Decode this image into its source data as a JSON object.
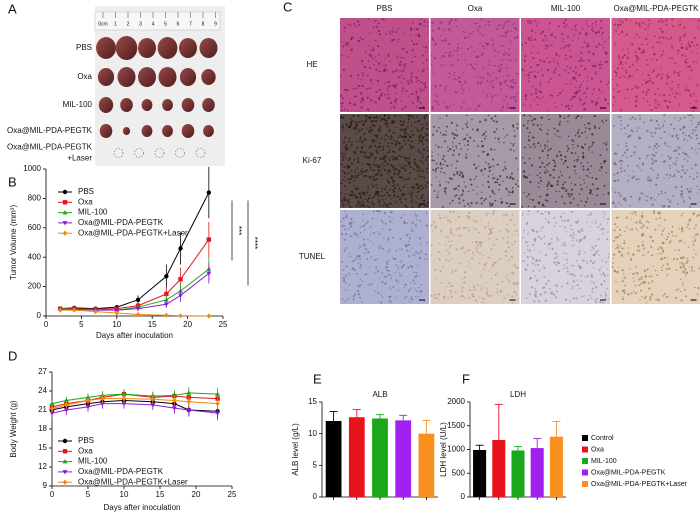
{
  "figure": {
    "panel_labels": [
      "A",
      "B",
      "C",
      "D",
      "E",
      "F"
    ],
    "photo": {
      "ruler": [
        "0cm",
        "1",
        "2",
        "3",
        "4",
        "5",
        "6",
        "7",
        "8",
        "9"
      ],
      "rows": [
        [
          "PBS"
        ],
        [
          "Oxa"
        ],
        [
          "MIL-100"
        ],
        [
          "Oxa@MIL-PDA-PEGTK"
        ],
        [
          "Oxa@MIL-PDA-PEGTK",
          "+Laser"
        ]
      ]
    },
    "histology": {
      "columns": [
        "PBS",
        "Oxa",
        "MIL-100",
        "Oxa@MIL-PDA-PEGTK"
      ],
      "rows": [
        "HE",
        "Ki-67",
        "TUNEL"
      ]
    }
  },
  "chart_data": [
    {
      "type": "line",
      "ylabel": "Tumor Volume (mm³)",
      "xlabel": "Days after inoculation",
      "x": [
        2,
        4,
        7,
        10,
        13,
        17,
        19,
        23
      ],
      "xlim": [
        0,
        25
      ],
      "xticks": [
        0,
        5,
        10,
        15,
        20,
        25
      ],
      "ylim": [
        0,
        1000
      ],
      "yticks": [
        0,
        200,
        400,
        600,
        800,
        1000
      ],
      "legend": "upper left",
      "annotations": [
        "***",
        "****"
      ],
      "series": [
        {
          "name": "PBS",
          "color": "#000000",
          "marker": "circle",
          "values": [
            50,
            55,
            50,
            60,
            110,
            270,
            460,
            840
          ],
          "errors": [
            10,
            10,
            10,
            15,
            30,
            80,
            110,
            175
          ]
        },
        {
          "name": "Oxa",
          "color": "#e8141c",
          "marker": "square",
          "values": [
            50,
            50,
            45,
            50,
            70,
            150,
            250,
            520
          ],
          "errors": [
            10,
            10,
            10,
            10,
            20,
            50,
            80,
            120
          ]
        },
        {
          "name": "MIL-100",
          "color": "#1aa81a",
          "marker": "triangle",
          "values": [
            50,
            45,
            45,
            40,
            60,
            110,
            170,
            320
          ],
          "errors": [
            10,
            10,
            10,
            10,
            15,
            30,
            50,
            80
          ]
        },
        {
          "name": "Oxa@MIL-PDA-PEGTK",
          "color": "#8b1ad6",
          "marker": "triangle-down",
          "values": [
            45,
            45,
            40,
            40,
            50,
            80,
            140,
            290
          ],
          "errors": [
            10,
            10,
            10,
            10,
            15,
            25,
            45,
            70
          ]
        },
        {
          "name": "Oxa@MIL-PDA-PEGTK+Laser",
          "color": "#f08a0a",
          "marker": "diamond",
          "values": [
            40,
            40,
            30,
            20,
            10,
            5,
            2,
            0
          ],
          "errors": [
            8,
            8,
            6,
            5,
            4,
            3,
            2,
            1
          ]
        }
      ]
    },
    {
      "type": "line",
      "ylabel": "Body Weight (g)",
      "xlabel": "Days after inoculation",
      "x": [
        0,
        2,
        5,
        7,
        10,
        14,
        17,
        19,
        23
      ],
      "xlim": [
        0,
        25
      ],
      "xticks": [
        0,
        5,
        10,
        15,
        20,
        25
      ],
      "ylim": [
        9,
        27
      ],
      "yticks": [
        9,
        12,
        15,
        18,
        21,
        24,
        27
      ],
      "legend": "lower left",
      "series": [
        {
          "name": "PBS",
          "color": "#000000",
          "marker": "circle",
          "values": [
            21,
            21.5,
            22,
            22.3,
            22.5,
            22.3,
            22,
            21,
            20.8
          ],
          "errors": [
            0.6,
            0.6,
            0.7,
            0.7,
            0.8,
            0.8,
            0.9,
            1,
            1.2
          ]
        },
        {
          "name": "Oxa",
          "color": "#e8141c",
          "marker": "square",
          "values": [
            21.5,
            22,
            22.5,
            23,
            23.5,
            23,
            23.2,
            23,
            22.8
          ],
          "errors": [
            0.6,
            0.6,
            0.7,
            0.7,
            0.8,
            0.8,
            0.8,
            0.8,
            0.9
          ]
        },
        {
          "name": "MIL-100",
          "color": "#1aa81a",
          "marker": "triangle",
          "values": [
            22,
            22.5,
            23,
            23.3,
            23.5,
            23.2,
            23.3,
            23.7,
            23.5
          ],
          "errors": [
            0.6,
            0.6,
            0.6,
            0.7,
            0.7,
            0.7,
            0.8,
            0.9,
            1
          ]
        },
        {
          "name": "Oxa@MIL-PDA-PEGTK",
          "color": "#8b1ad6",
          "marker": "triangle-down",
          "values": [
            20.5,
            21,
            21.5,
            22,
            22,
            21.8,
            21.3,
            21,
            20.5
          ],
          "errors": [
            0.8,
            0.8,
            0.8,
            0.8,
            0.8,
            0.8,
            0.9,
            1,
            1.1
          ]
        },
        {
          "name": "Oxa@MIL-PDA-PEGTK+Laser",
          "color": "#f08a0a",
          "marker": "diamond",
          "values": [
            21.2,
            21.8,
            22.5,
            22.8,
            22.8,
            22.7,
            22.5,
            22.3,
            22
          ],
          "errors": [
            0.6,
            0.6,
            0.6,
            0.7,
            0.7,
            0.7,
            0.7,
            0.8,
            0.8
          ]
        }
      ]
    },
    {
      "type": "bar",
      "title": "ALB",
      "ylabel": "ALB level (g/L)",
      "categories": [
        null,
        null,
        null,
        null,
        null
      ],
      "values": [
        12,
        12.6,
        12.4,
        12.1,
        10
      ],
      "errors": [
        1.5,
        1.2,
        0.6,
        0.8,
        2.1
      ],
      "colors": [
        "#000000",
        "#e8141c",
        "#1aa81a",
        "#a020f0",
        "#f7901e"
      ],
      "ylim": [
        0,
        15
      ],
      "yticks": [
        0,
        5,
        10,
        15
      ]
    },
    {
      "type": "bar",
      "title": "LDH",
      "ylabel": "LDH level (U/L)",
      "category_labels": "legend",
      "categories": [
        "Control",
        "Oxa",
        "MIL-100",
        "Oxa@MIL-PDA-PEGTK",
        "Oxa@MIL-PDA-PEGTK+Laser"
      ],
      "values": [
        990,
        1200,
        980,
        1030,
        1270
      ],
      "errors": [
        100,
        750,
        80,
        200,
        320
      ],
      "colors": [
        "#000000",
        "#e8141c",
        "#1aa81a",
        "#a020f0",
        "#f7901e"
      ],
      "ylim": [
        0,
        2000
      ],
      "yticks": [
        0,
        500,
        1000,
        1500,
        2000
      ]
    }
  ]
}
